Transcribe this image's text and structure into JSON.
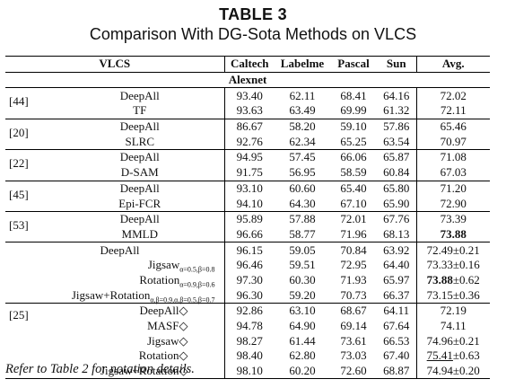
{
  "caption": {
    "number": "TABLE 3",
    "title": "Comparison With DG-Sota Methods on VLCS"
  },
  "header": {
    "dataset": "VLCS",
    "columns": [
      "Caltech",
      "Labelme",
      "Pascal",
      "Sun"
    ],
    "avg": "Avg.",
    "backbone": "Alexnet"
  },
  "groups": [
    {
      "ref": "[44]",
      "rows": [
        {
          "method": "DeepAll",
          "values": [
            "93.40",
            "62.11",
            "68.41",
            "64.16"
          ],
          "avg": "72.02"
        },
        {
          "method": "TF",
          "values": [
            "93.63",
            "63.49",
            "69.99",
            "61.32"
          ],
          "avg": "72.11"
        }
      ]
    },
    {
      "ref": "[20]",
      "rows": [
        {
          "method": "DeepAll",
          "values": [
            "86.67",
            "58.20",
            "59.10",
            "57.86"
          ],
          "avg": "65.46"
        },
        {
          "method": "SLRC",
          "values": [
            "92.76",
            "62.34",
            "65.25",
            "63.54"
          ],
          "avg": "70.97"
        }
      ]
    },
    {
      "ref": "[22]",
      "rows": [
        {
          "method": "DeepAll",
          "values": [
            "94.95",
            "57.45",
            "66.06",
            "65.87"
          ],
          "avg": "71.08"
        },
        {
          "method": "D-SAM",
          "values": [
            "91.75",
            "56.95",
            "58.59",
            "60.84"
          ],
          "avg": "67.03"
        }
      ]
    },
    {
      "ref": "[45]",
      "rows": [
        {
          "method": "DeepAll",
          "values": [
            "93.10",
            "60.60",
            "65.40",
            "65.80"
          ],
          "avg": "71.20"
        },
        {
          "method": "Epi-FCR",
          "values": [
            "94.10",
            "64.30",
            "67.10",
            "65.90"
          ],
          "avg": "72.90"
        }
      ]
    },
    {
      "ref": "[53]",
      "rows": [
        {
          "method": "DeepAll",
          "values": [
            "95.89",
            "57.88",
            "72.01",
            "67.76"
          ],
          "avg": "73.39"
        },
        {
          "method": "MMLD",
          "values": [
            "96.66",
            "58.77",
            "71.96",
            "68.13"
          ],
          "avg": "73.88"
        }
      ]
    },
    {
      "ref": "",
      "rows": [
        {
          "method": "DeepAll",
          "sub": "",
          "values": [
            "96.15",
            "59.05",
            "70.84",
            "63.92"
          ],
          "avg": "72.49±0.21"
        },
        {
          "method": "Jigsaw",
          "sub": "α=0.5,β=0.8",
          "values": [
            "96.46",
            "59.51",
            "72.95",
            "64.40"
          ],
          "avg": "73.33±0.16"
        },
        {
          "method": "Rotation",
          "sub": "α=0.9,β=0.6",
          "values": [
            "97.30",
            "60.30",
            "71.93",
            "65.97"
          ],
          "avg_bold": "73.88",
          "avg_rest": "±0.62"
        },
        {
          "method": "Jigsaw+Rotation",
          "sub": "α,β=0.9,α,β=0.5,β=0.7",
          "values": [
            "96.30",
            "59.20",
            "70.73",
            "66.37"
          ],
          "avg": "73.15±0.36"
        }
      ]
    },
    {
      "ref": "[25]",
      "rows": [
        {
          "method": "DeepAll◇",
          "values": [
            "92.86",
            "63.10",
            "68.67",
            "64.11"
          ],
          "avg": "72.19"
        },
        {
          "method": "MASF◇",
          "values": [
            "94.78",
            "64.90",
            "69.14",
            "67.64"
          ],
          "avg": "74.11"
        },
        {
          "method": "Jigsaw◇",
          "values": [
            "98.27",
            "61.44",
            "73.61",
            "66.53"
          ],
          "avg": "74.96±0.21"
        },
        {
          "method": "Rotation◇",
          "values": [
            "98.40",
            "62.80",
            "73.03",
            "67.40"
          ],
          "avg_ul": "75.41",
          "avg_rest": "±0.63"
        },
        {
          "method": "Jigsaw+Rotation◇",
          "values": [
            "98.10",
            "60.20",
            "72.60",
            "68.87"
          ],
          "avg": "74.94±0.20"
        }
      ]
    }
  ],
  "footnote": "Refer to Table 2 for notation details."
}
